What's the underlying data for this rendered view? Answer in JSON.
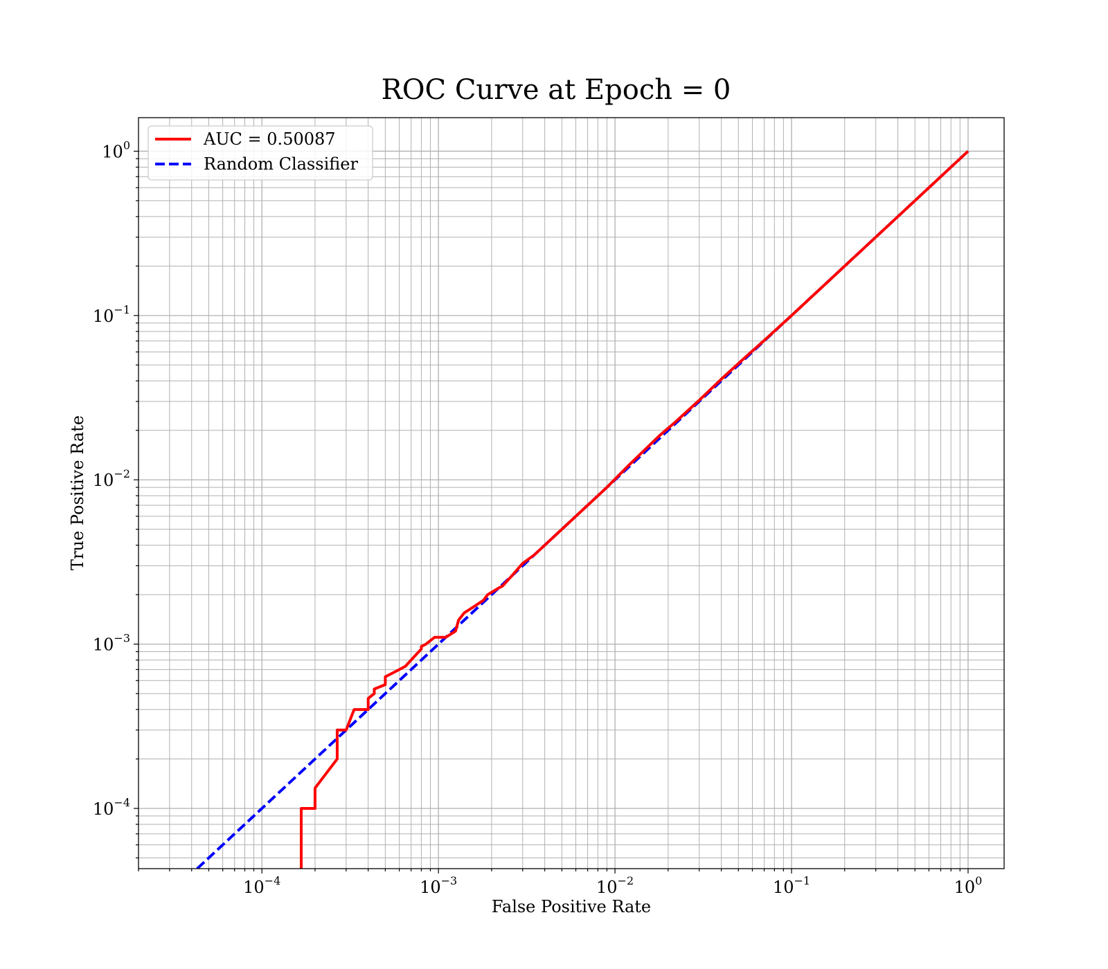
{
  "chart_data": {
    "type": "line",
    "title": "ROC Curve at Epoch = 0",
    "xlabel": "False Positive Rate",
    "ylabel": "True Positive Rate",
    "xscale": "log",
    "yscale": "log",
    "xlim": [
      2e-05,
      1.6
    ],
    "ylim": [
      4.3e-05,
      1.6
    ],
    "grid": "on (major and minor)",
    "legend_placement": "upper-left",
    "x_ticks": [
      {
        "base": "10",
        "exp": "−4",
        "value": 0.0001
      },
      {
        "base": "10",
        "exp": "−3",
        "value": 0.001
      },
      {
        "base": "10",
        "exp": "−2",
        "value": 0.01
      },
      {
        "base": "10",
        "exp": "−1",
        "value": 0.1
      },
      {
        "base": "10",
        "exp": "0",
        "value": 1
      }
    ],
    "y_ticks": [
      {
        "base": "10",
        "exp": "−4",
        "value": 0.0001
      },
      {
        "base": "10",
        "exp": "−3",
        "value": 0.001
      },
      {
        "base": "10",
        "exp": "−2",
        "value": 0.01
      },
      {
        "base": "10",
        "exp": "−1",
        "value": 0.1
      },
      {
        "base": "10",
        "exp": "0",
        "value": 1
      }
    ],
    "series": [
      {
        "name": "AUC = 0.50087",
        "color": "#ff0000",
        "style": "solid",
        "points": [
          [
            0.000167,
            4.3e-05
          ],
          [
            0.000167,
            0.0001
          ],
          [
            0.0002,
            0.0001
          ],
          [
            0.0002,
            0.000133
          ],
          [
            0.000267,
            0.0002
          ],
          [
            0.000267,
            0.0003
          ],
          [
            0.0003,
            0.0003
          ],
          [
            0.000333,
            0.0004
          ],
          [
            0.0004,
            0.0004
          ],
          [
            0.0004,
            0.000467
          ],
          [
            0.000433,
            0.0005
          ],
          [
            0.000433,
            0.000533
          ],
          [
            0.0005,
            0.000567
          ],
          [
            0.0005,
            0.000633
          ],
          [
            0.00055,
            0.000667
          ],
          [
            0.0006,
            0.0007
          ],
          [
            0.00065,
            0.000733
          ],
          [
            0.0007,
            0.0008
          ],
          [
            0.00075,
            0.000867
          ],
          [
            0.0008,
            0.000933
          ],
          [
            0.0008,
            0.000967
          ],
          [
            0.00085,
            0.001
          ],
          [
            0.0009,
            0.00105
          ],
          [
            0.00095,
            0.0011
          ],
          [
            0.0011,
            0.0011
          ],
          [
            0.00125,
            0.0012
          ],
          [
            0.0013,
            0.0014
          ],
          [
            0.0014,
            0.00155
          ],
          [
            0.0016,
            0.0017
          ],
          [
            0.0018,
            0.00185
          ],
          [
            0.0019,
            0.002
          ],
          [
            0.0022,
            0.0022
          ],
          [
            0.0023,
            0.00225
          ],
          [
            0.0026,
            0.0026
          ],
          [
            0.003,
            0.0031
          ],
          [
            0.0035,
            0.0035
          ],
          [
            0.004,
            0.004
          ],
          [
            0.0048,
            0.0048
          ],
          [
            0.0055,
            0.0055
          ],
          [
            0.007,
            0.007
          ],
          [
            0.009,
            0.009
          ],
          [
            0.012,
            0.0123
          ],
          [
            0.015,
            0.0155
          ],
          [
            0.018,
            0.0187
          ],
          [
            0.022,
            0.0225
          ],
          [
            0.03,
            0.0305
          ],
          [
            0.04,
            0.041
          ],
          [
            0.055,
            0.056
          ],
          [
            0.07,
            0.0705
          ],
          [
            0.1,
            0.1
          ],
          [
            0.2,
            0.2
          ],
          [
            0.4,
            0.4
          ],
          [
            0.7,
            0.7
          ],
          [
            1,
            1
          ]
        ]
      },
      {
        "name": "Random Classifier",
        "color": "#0000ff",
        "style": "dashed",
        "points": [
          [
            4.3e-05,
            4.3e-05
          ],
          [
            1,
            1
          ]
        ]
      }
    ]
  }
}
